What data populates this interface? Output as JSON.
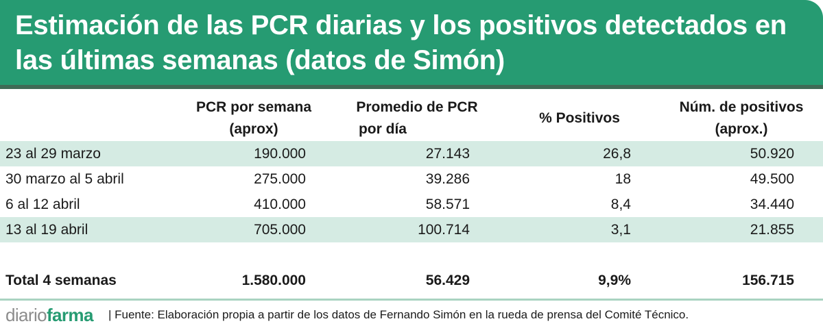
{
  "title": "Estimación de las PCR diarias y los positivos detectados en las últimas semanas (datos de Simón)",
  "chart_data": {
    "type": "table",
    "columns": [
      {
        "line1": "PCR por semana",
        "line2": "(aprox)"
      },
      {
        "line1": "Promedio de PCR",
        "line2": "por día"
      },
      {
        "line1": "% Positivos",
        "line2": ""
      },
      {
        "line1": "Núm. de positivos",
        "line2": "(aprox.)"
      }
    ],
    "rows": [
      {
        "label": "23 al 29 marzo",
        "values": [
          "190.000",
          "27.143",
          "26,8",
          "50.920"
        ]
      },
      {
        "label": "30 marzo al 5 abril",
        "values": [
          "275.000",
          "39.286",
          "18",
          "49.500"
        ]
      },
      {
        "label": "6 al 12 abril",
        "values": [
          "410.000",
          "58.571",
          "8,4",
          "34.440"
        ]
      },
      {
        "label": "13 al 19 abril",
        "values": [
          "705.000",
          "100.714",
          "3,1",
          "21.855"
        ]
      }
    ],
    "total": {
      "label": "Total 4 semanas",
      "values": [
        "1.580.000",
        "56.429",
        "9,9%",
        "156.715"
      ]
    }
  },
  "footer": {
    "logo_part1": "diario",
    "logo_part2": "farma",
    "source": "| Fuente: Elaboración propia a partir de los datos de Fernando Simón en la rueda de prensa del Comité Técnico."
  },
  "colors": {
    "header": "#269b72",
    "header_rule": "#3f6b56",
    "row_shade": "#d5ebe3",
    "footer_rule": "#a9d3c1"
  }
}
